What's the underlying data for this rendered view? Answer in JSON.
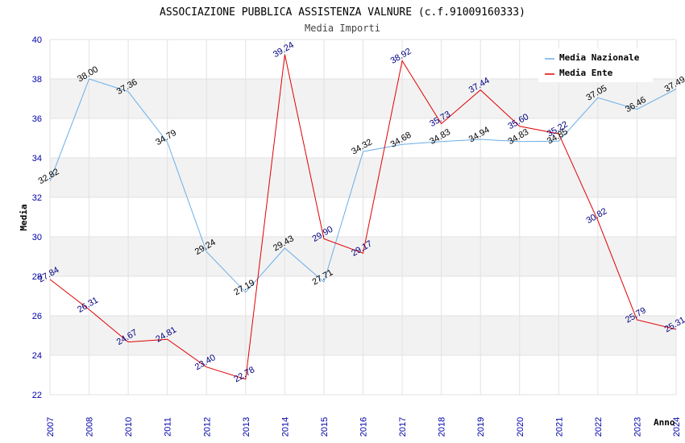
{
  "chart_data": {
    "type": "line",
    "title": "ASSOCIAZIONE PUBBLICA ASSISTENZA VALNURE (c.f.91009160333)",
    "subtitle": "Media Importi",
    "xlabel": "Anno",
    "ylabel": "Media",
    "ylim": [
      22,
      40
    ],
    "yticks": [
      22,
      24,
      26,
      28,
      30,
      32,
      34,
      36,
      38,
      40
    ],
    "categories": [
      "2007",
      "2008",
      "2010",
      "2011",
      "2012",
      "2013",
      "2014",
      "2015",
      "2016",
      "2017",
      "2018",
      "2019",
      "2020",
      "2021",
      "2022",
      "2023",
      "2024"
    ],
    "series": [
      {
        "name": "Media Nazionale",
        "color": "#6aaee8",
        "label_color": "#000000",
        "values": [
          32.82,
          38.0,
          37.36,
          34.79,
          29.24,
          27.19,
          29.43,
          27.71,
          34.32,
          34.68,
          34.83,
          34.94,
          34.83,
          34.85,
          37.05,
          36.46,
          37.49
        ],
        "labels": [
          "32.82",
          "38.00",
          "37.36",
          "34.79",
          "29.24",
          "27.19",
          "29.43",
          "27.71",
          "34.32",
          "34.68",
          "34.83",
          "34.94",
          "34.83",
          "34.85",
          "37.05",
          "36.46",
          "37.49"
        ]
      },
      {
        "name": "Media Ente",
        "color": "#e00000",
        "label_color": "#000080",
        "values": [
          27.84,
          26.31,
          24.67,
          24.81,
          23.4,
          22.78,
          39.24,
          29.9,
          29.17,
          38.92,
          35.73,
          37.44,
          35.6,
          35.22,
          30.82,
          25.79,
          25.31
        ],
        "labels": [
          "27.84",
          "26.31",
          "24.67",
          "24.81",
          "23.40",
          "22.78",
          "39.24",
          "29.90",
          "29.17",
          "38.92",
          "35.73",
          "37.44",
          "35.60",
          "35.22",
          "30.82",
          "25.79",
          "25.31"
        ]
      }
    ],
    "grid": true,
    "legend": "top-right"
  }
}
